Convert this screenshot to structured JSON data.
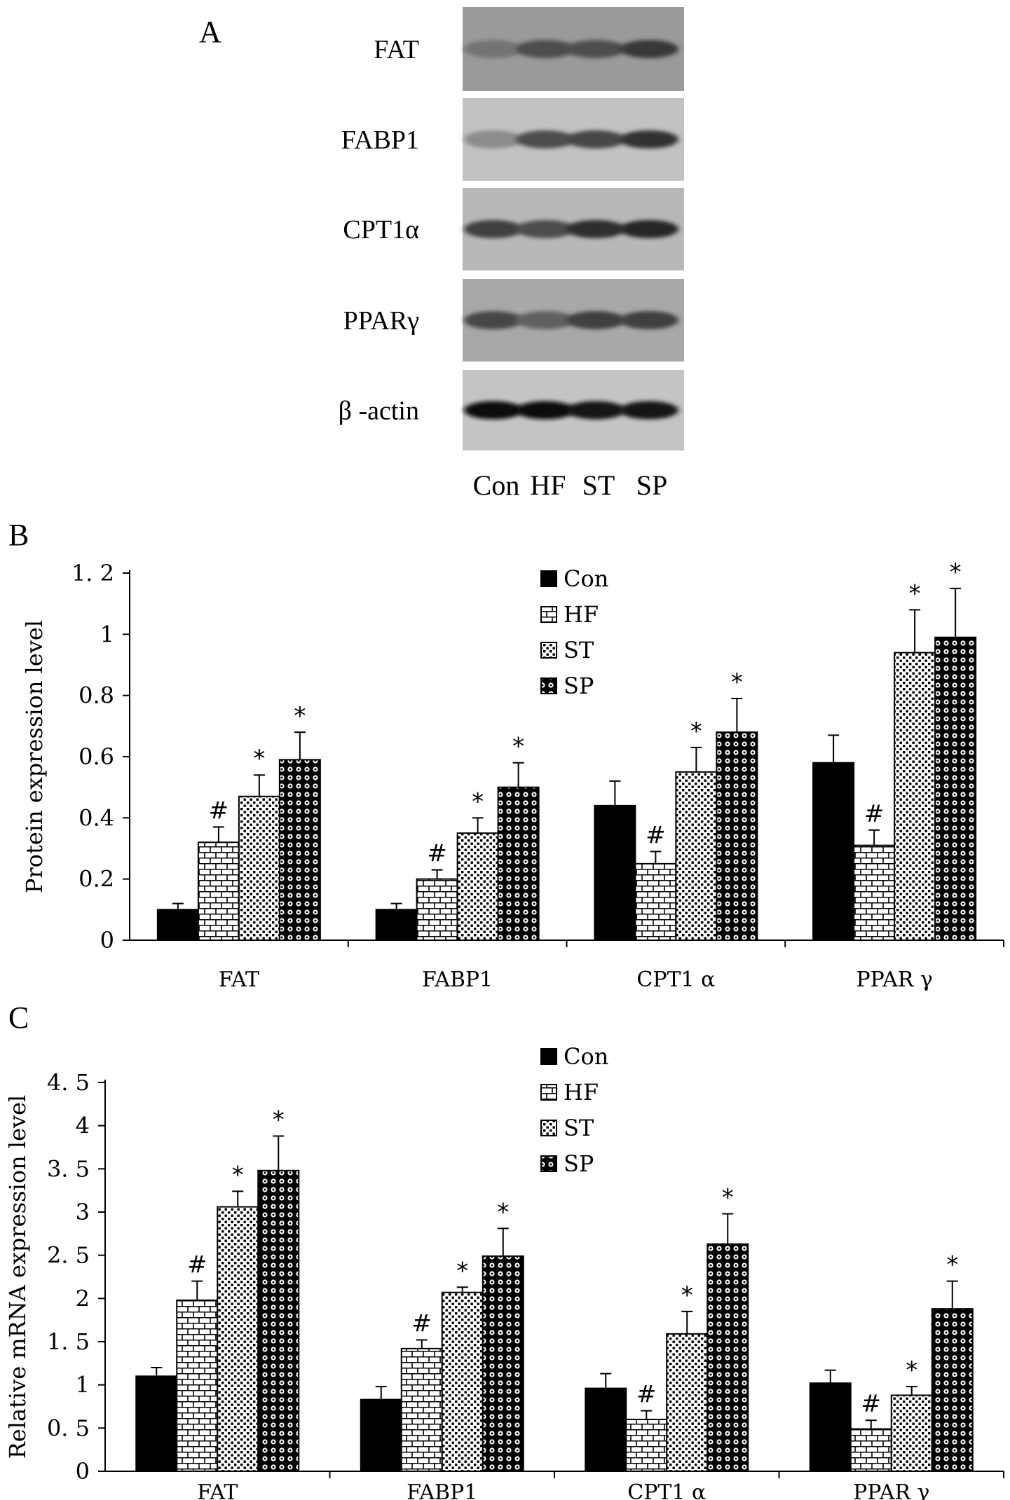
{
  "panel_a": {
    "label": "A",
    "blots": [
      {
        "name": "FAT",
        "label": "FAT",
        "intensity": [
          0.55,
          0.7,
          0.7,
          0.78
        ],
        "bg": "#9a9a9a"
      },
      {
        "name": "FABP1",
        "label": "FABP1",
        "intensity": [
          0.45,
          0.7,
          0.72,
          0.8
        ],
        "bg": "#c2c2c2"
      },
      {
        "name": "CPT1a",
        "label": "CPT1α",
        "intensity": [
          0.75,
          0.7,
          0.82,
          0.85
        ],
        "bg": "#b8b8b8"
      },
      {
        "name": "PPARg",
        "label": "PPARγ",
        "intensity": [
          0.72,
          0.62,
          0.75,
          0.75
        ],
        "bg": "#a8a8a8"
      },
      {
        "name": "beta-actin",
        "label": "β -actin",
        "intensity": [
          0.95,
          0.95,
          0.92,
          0.9
        ],
        "bg": "#c4c4c4"
      }
    ],
    "lanes": [
      "Con",
      "HF",
      "ST",
      "SP"
    ]
  },
  "chart_data": [
    {
      "panel": "B",
      "type": "bar",
      "ylabel": "Protein expression level",
      "ylim": [
        0,
        1.2
      ],
      "yticks": [
        0,
        0.2,
        0.4,
        0.6,
        0.8,
        1,
        1.2
      ],
      "ytick_labels": [
        "0",
        "0.2",
        "0.4",
        "0.6",
        "0.8",
        "1",
        "1. 2"
      ],
      "categories": [
        "FAT",
        "FABP1",
        "CPT1 α",
        "PPAR γ"
      ],
      "legend_position": "top-center",
      "series": [
        {
          "name": "Con",
          "pattern": "solid",
          "values": [
            0.1,
            0.1,
            0.44,
            0.58
          ],
          "errors": [
            0.02,
            0.02,
            0.08,
            0.09
          ],
          "marks": [
            "",
            "",
            "",
            ""
          ]
        },
        {
          "name": "HF",
          "pattern": "brick",
          "values": [
            0.32,
            0.2,
            0.25,
            0.31
          ],
          "errors": [
            0.05,
            0.03,
            0.04,
            0.05
          ],
          "marks": [
            "#",
            "#",
            "#",
            "#"
          ]
        },
        {
          "name": "ST",
          "pattern": "dots",
          "values": [
            0.47,
            0.35,
            0.55,
            0.94
          ],
          "errors": [
            0.07,
            0.05,
            0.08,
            0.14
          ],
          "marks": [
            "*",
            "*",
            "*",
            "*"
          ]
        },
        {
          "name": "SP",
          "pattern": "circles",
          "values": [
            0.59,
            0.5,
            0.68,
            0.99
          ],
          "errors": [
            0.09,
            0.08,
            0.11,
            0.16
          ],
          "marks": [
            "*",
            "*",
            "*",
            "*"
          ]
        }
      ]
    },
    {
      "panel": "C",
      "type": "bar",
      "ylabel": "Relative mRNA expression level",
      "ylim": [
        0,
        4.5
      ],
      "yticks": [
        0,
        0.5,
        1,
        1.5,
        2,
        2.5,
        3,
        3.5,
        4,
        4.5
      ],
      "ytick_labels": [
        "0",
        "0. 5",
        "1",
        "1. 5",
        "2",
        "2. 5",
        "3",
        "3. 5",
        "4",
        "4. 5"
      ],
      "categories": [
        "FAT",
        "FABP1",
        "CPT1 α",
        "PPAR γ"
      ],
      "legend_position": "top-center",
      "series": [
        {
          "name": "Con",
          "pattern": "solid",
          "values": [
            1.1,
            0.83,
            0.96,
            1.02
          ],
          "errors": [
            0.1,
            0.15,
            0.17,
            0.15
          ],
          "marks": [
            "",
            "",
            "",
            ""
          ]
        },
        {
          "name": "HF",
          "pattern": "brick",
          "values": [
            1.98,
            1.42,
            0.6,
            0.49
          ],
          "errors": [
            0.22,
            0.1,
            0.1,
            0.1
          ],
          "marks": [
            "#",
            "#",
            "#",
            "#"
          ]
        },
        {
          "name": "ST",
          "pattern": "dots",
          "values": [
            3.06,
            2.07,
            1.59,
            0.88
          ],
          "errors": [
            0.18,
            0.06,
            0.26,
            0.1
          ],
          "marks": [
            "*",
            "*",
            "*",
            "*"
          ]
        },
        {
          "name": "SP",
          "pattern": "circles",
          "values": [
            3.48,
            2.49,
            2.63,
            1.88
          ],
          "errors": [
            0.4,
            0.32,
            0.35,
            0.32
          ],
          "marks": [
            "*",
            "*",
            "*",
            "*"
          ]
        }
      ]
    }
  ]
}
